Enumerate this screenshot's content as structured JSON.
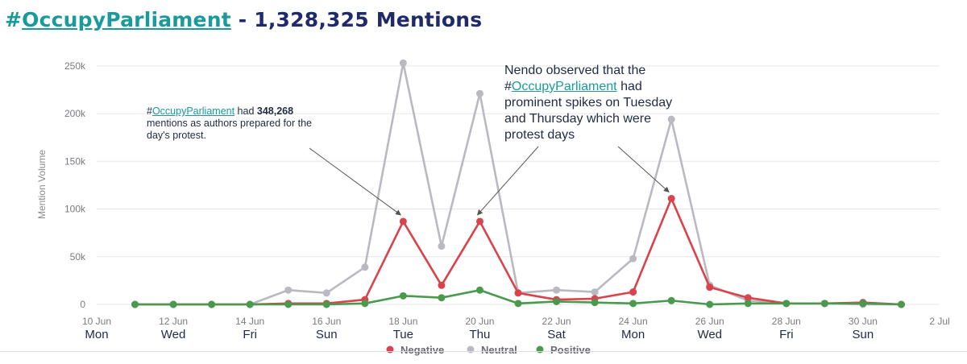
{
  "headline": {
    "hash": "#",
    "hashtag": "OccupyParliament",
    "rest": " - 1,328,325 Mentions"
  },
  "annotations": {
    "left": {
      "hash": "#",
      "tag": "OccupyParliament",
      "text_a": " had ",
      "bold": "348,268",
      "text_b": " mentions as authors prepared for the day's protest."
    },
    "right": {
      "line1": "Nendo observed that the",
      "hash": "#",
      "tag": "OccupyParliament",
      "text_a": " had prominent spikes on Tuesday and Thursday which were protest days"
    }
  },
  "chart_data": {
    "type": "line",
    "x": [
      "2024-06-11",
      "2024-06-12",
      "2024-06-13",
      "2024-06-14",
      "2024-06-15",
      "2024-06-16",
      "2024-06-17",
      "2024-06-18",
      "2024-06-19",
      "2024-06-20",
      "2024-06-21",
      "2024-06-22",
      "2024-06-23",
      "2024-06-24",
      "2024-06-25",
      "2024-06-26",
      "2024-06-27",
      "2024-06-28",
      "2024-06-29",
      "2024-06-30",
      "2024-07-01"
    ],
    "series": [
      {
        "name": "Negative",
        "color": "#d9434b",
        "values": [
          0,
          0,
          0,
          0,
          1000,
          1000,
          5000,
          87000,
          20000,
          87000,
          12000,
          5000,
          6000,
          13000,
          111000,
          18000,
          7000,
          1000,
          1000,
          2000,
          0
        ]
      },
      {
        "name": "Neutral",
        "color": "#b9b9c1",
        "values": [
          0,
          0,
          0,
          0,
          15000,
          12000,
          39000,
          253000,
          61000,
          221000,
          12000,
          15000,
          13000,
          48000,
          194000,
          20000,
          4000,
          1000,
          1000,
          0,
          0
        ]
      },
      {
        "name": "Positive",
        "color": "#4a9a4e",
        "values": [
          0,
          0,
          0,
          0,
          0,
          0,
          1000,
          9000,
          7000,
          15000,
          1000,
          3000,
          2000,
          1000,
          4000,
          0,
          1000,
          1000,
          1000,
          1000,
          0
        ]
      }
    ],
    "ylabel": "Mention Volume",
    "ylim": [
      0,
      260000
    ],
    "yticks": [
      {
        "value": 0,
        "label": "0"
      },
      {
        "value": 50000,
        "label": "50k"
      },
      {
        "value": 100000,
        "label": "100k"
      },
      {
        "value": 150000,
        "label": "150k"
      },
      {
        "value": 200000,
        "label": "200k"
      },
      {
        "value": 250000,
        "label": "250k"
      }
    ],
    "xticks": [
      {
        "date": "2024-06-10",
        "label": "10 Jun",
        "day": "Mon"
      },
      {
        "date": "2024-06-12",
        "label": "12 Jun",
        "day": "Wed"
      },
      {
        "date": "2024-06-14",
        "label": "14 Jun",
        "day": "Fri"
      },
      {
        "date": "2024-06-16",
        "label": "16 Jun",
        "day": "Sun"
      },
      {
        "date": "2024-06-18",
        "label": "18 Jun",
        "day": "Tue"
      },
      {
        "date": "2024-06-20",
        "label": "20 Jun",
        "day": "Thu"
      },
      {
        "date": "2024-06-22",
        "label": "22 Jun",
        "day": "Sat"
      },
      {
        "date": "2024-06-24",
        "label": "24 Jun",
        "day": "Mon"
      },
      {
        "date": "2024-06-26",
        "label": "26 Jun",
        "day": "Wed"
      },
      {
        "date": "2024-06-28",
        "label": "28 Jun",
        "day": "Fri"
      },
      {
        "date": "2024-06-30",
        "label": "30 Jun",
        "day": "Sun"
      },
      {
        "date": "2024-07-02",
        "label": "2 Jul",
        "day": ""
      }
    ],
    "xlim": [
      "2024-06-10",
      "2024-07-02"
    ],
    "grid": true,
    "legend_position": "bottom-center",
    "arrow_targets": [
      {
        "date": "2024-06-18",
        "series": "Negative"
      },
      {
        "date": "2024-06-20",
        "series": "Negative"
      },
      {
        "date": "2024-06-25",
        "series": "Negative"
      }
    ]
  }
}
